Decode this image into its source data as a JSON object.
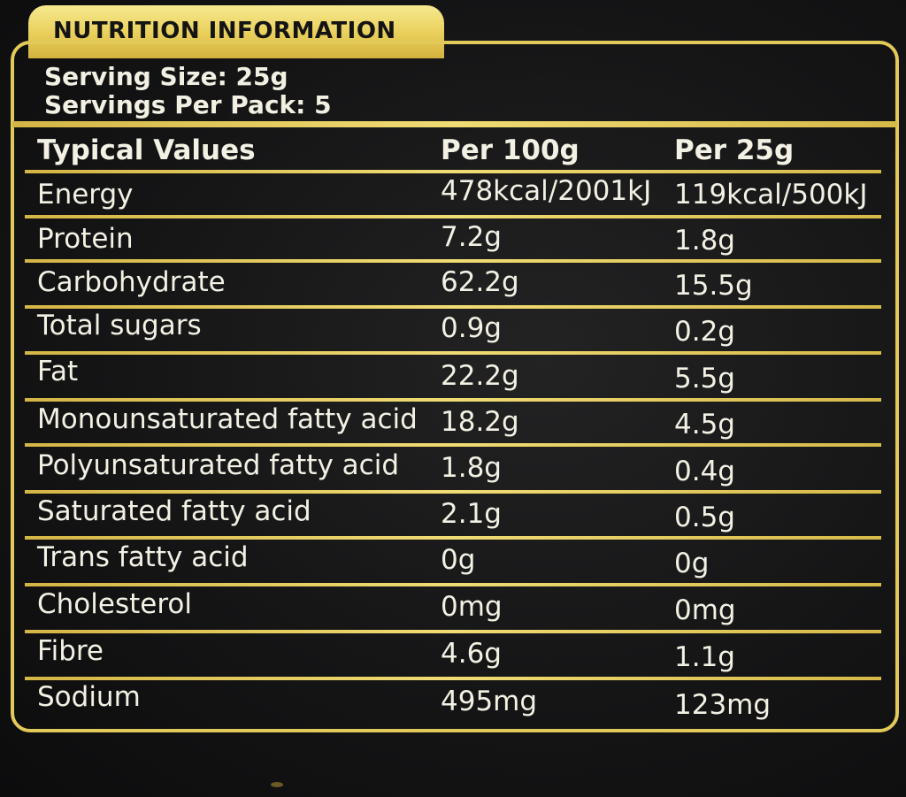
{
  "label": {
    "title": "NUTRITION INFORMATION",
    "serving_size": "Serving Size: 25g",
    "servings_per_pack": "Servings Per Pack: 5"
  },
  "table": {
    "headers": [
      "Typical Values",
      "Per 100g",
      "Per 25g"
    ],
    "rows": [
      [
        "Energy",
        "478kcal/2001kJ",
        "119kcal/500kJ"
      ],
      [
        "Protein",
        "7.2g",
        "1.8g"
      ],
      [
        "Carbohydrate",
        "62.2g",
        "15.5g"
      ],
      [
        "Total sugars",
        "0.9g",
        "0.2g"
      ],
      [
        "Fat",
        "22.2g",
        "5.5g"
      ],
      [
        "Monounsaturated fatty acid",
        "18.2g",
        "4.5g"
      ],
      [
        "Polyunsaturated fatty acid",
        "1.8g",
        "0.4g"
      ],
      [
        "Saturated fatty acid",
        "2.1g",
        "0.5g"
      ],
      [
        "Trans fatty acid",
        "0g",
        "0g"
      ],
      [
        "Cholesterol",
        "0mg",
        "0mg"
      ],
      [
        "Fibre",
        "4.6g",
        "1.1g"
      ],
      [
        "Sodium",
        "495mg",
        "123mg"
      ]
    ]
  },
  "colors": {
    "gold": "#e3c959",
    "background": "#151516",
    "text": "#f3f1e4"
  }
}
